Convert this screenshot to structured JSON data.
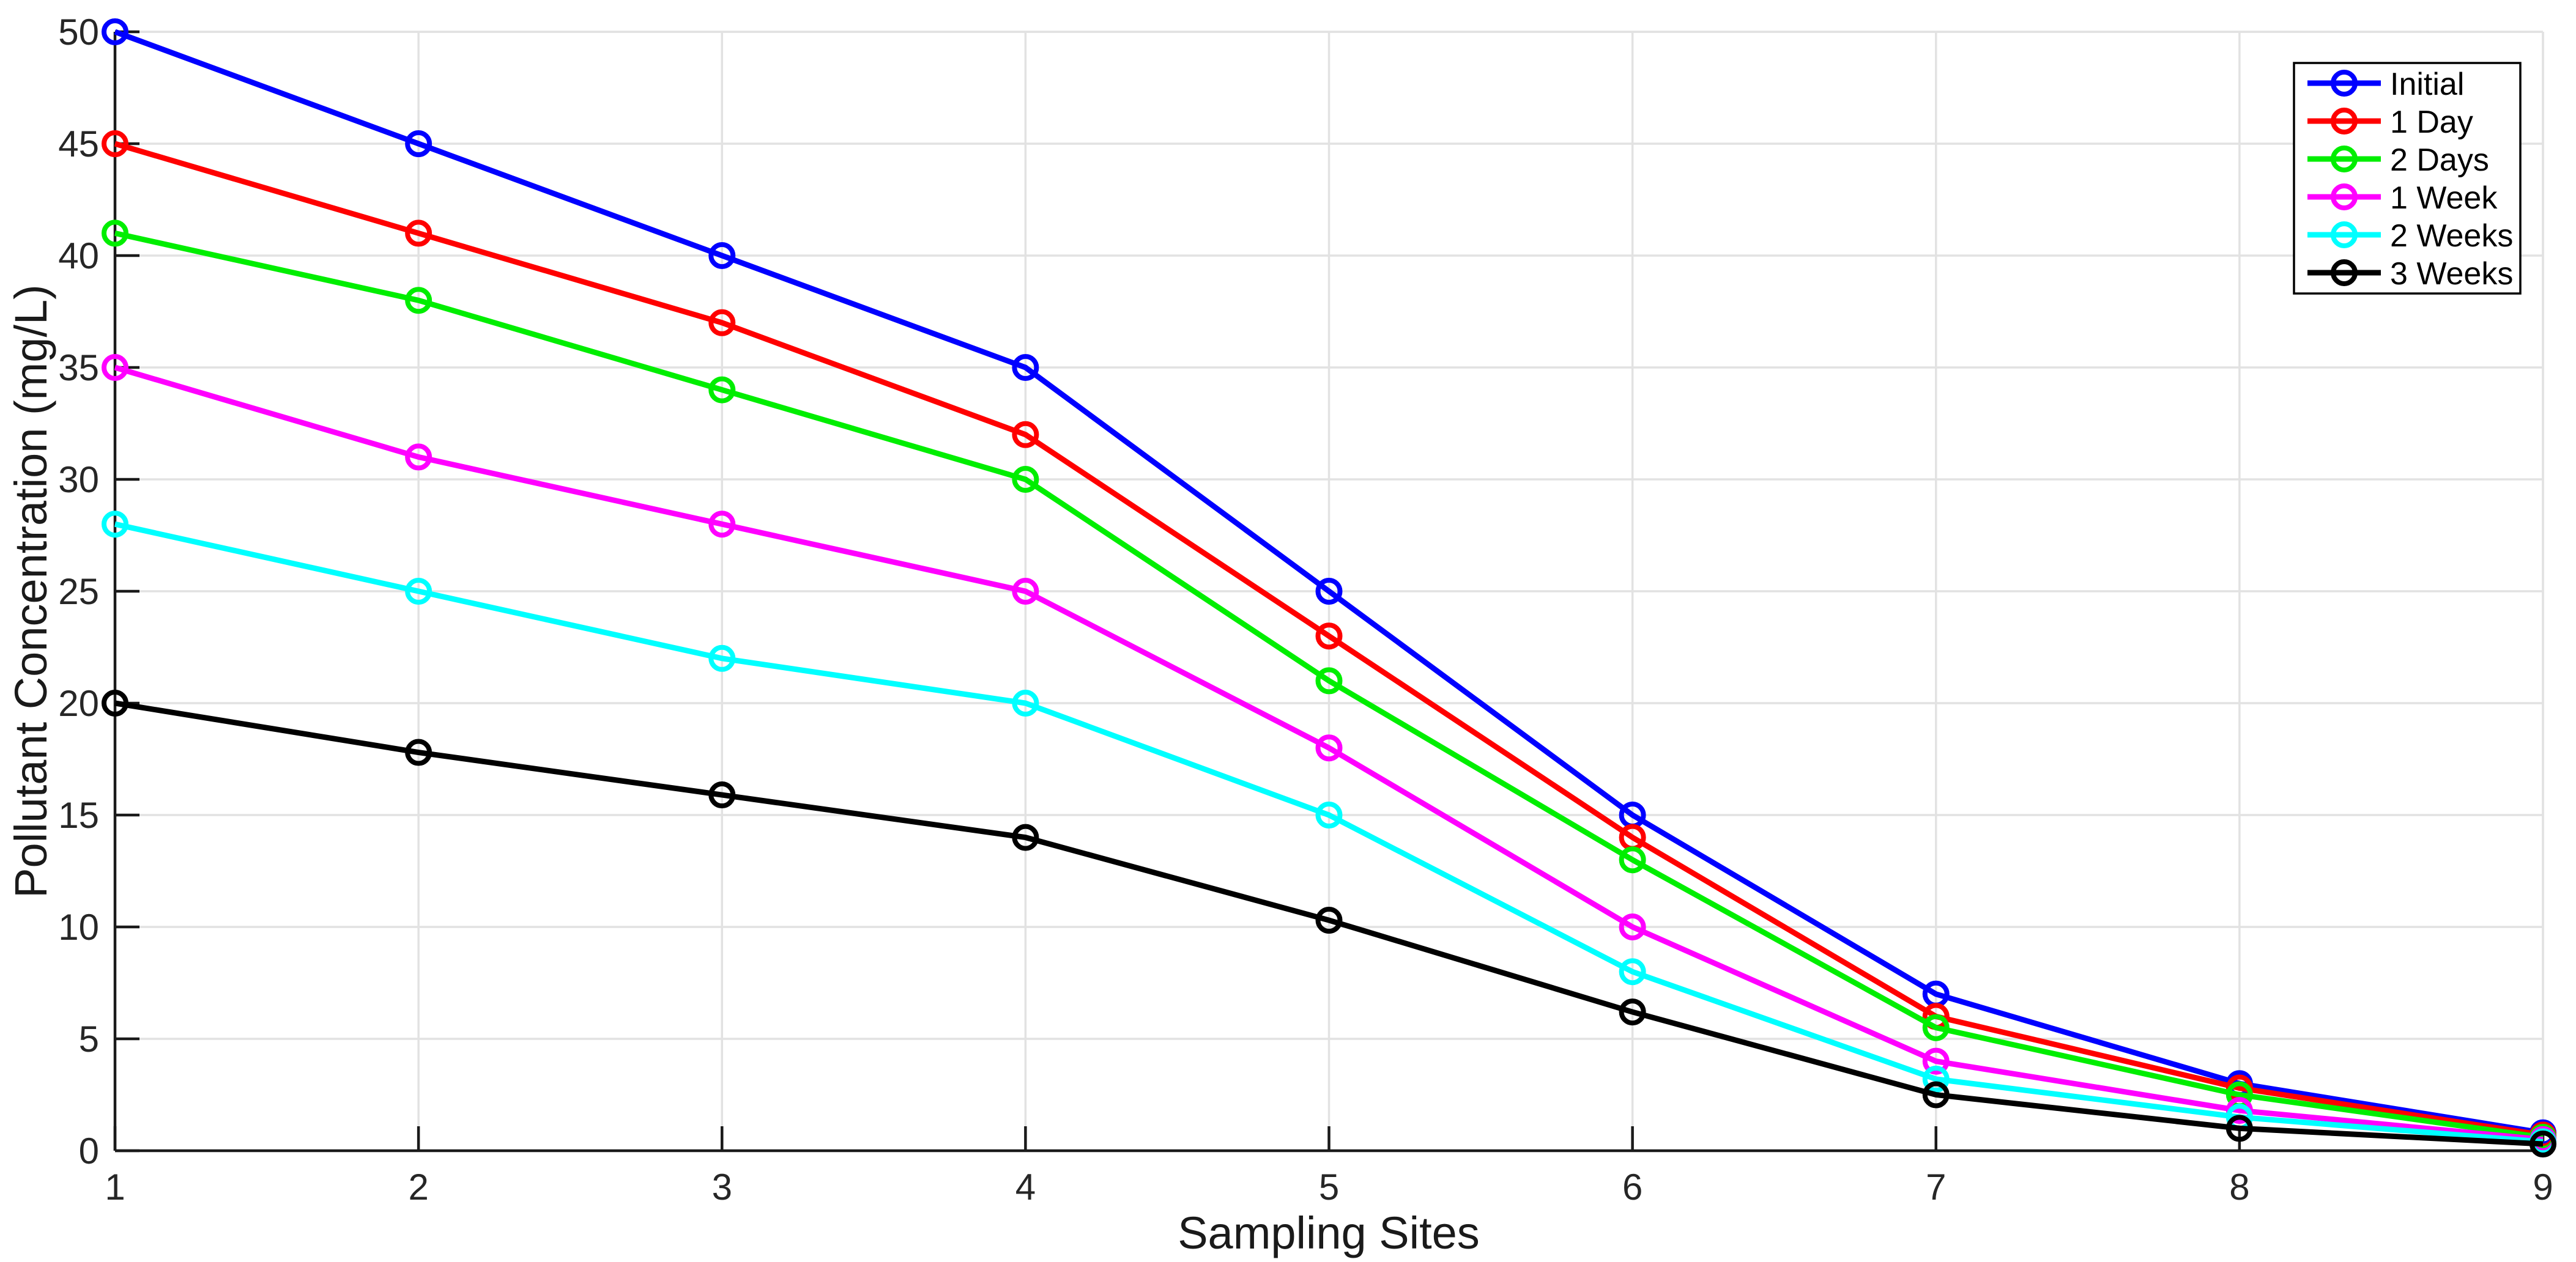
{
  "figure": {
    "background": "#FFFFFF",
    "grid_color": "#E2E2E2",
    "axis_color": "#1A1A1A",
    "tick_text_color": "#262626",
    "label_text_color": "#1A1A1A",
    "legend_border_color": "#000000",
    "legend_background": "#FFFFFF"
  },
  "chart_data": {
    "type": "line",
    "title": "",
    "xlabel": "Sampling Sites",
    "ylabel": "Pollutant Concentration (mg/L)",
    "x": [
      1,
      2,
      3,
      4,
      5,
      6,
      7,
      8,
      9
    ],
    "x_ticks": [
      1,
      2,
      3,
      4,
      5,
      6,
      7,
      8,
      9
    ],
    "y_ticks": [
      0,
      5,
      10,
      15,
      20,
      25,
      30,
      35,
      40,
      45,
      50
    ],
    "xlim": [
      1,
      9
    ],
    "ylim": [
      0,
      50
    ],
    "grid": true,
    "legend_position": "top-right",
    "marker": "open-circle",
    "series": [
      {
        "name": "Initial",
        "color": "#0000FF",
        "values": [
          50,
          45,
          40,
          35,
          25,
          15,
          7,
          3,
          0.8
        ]
      },
      {
        "name": "1 Day",
        "color": "#FF0000",
        "values": [
          45,
          41,
          37,
          32,
          23,
          14,
          6,
          2.8,
          0.7
        ]
      },
      {
        "name": "2 Days",
        "color": "#00EE00",
        "values": [
          41,
          38,
          34,
          30,
          21,
          13,
          5.5,
          2.5,
          0.6
        ]
      },
      {
        "name": "1 Week",
        "color": "#FF00FF",
        "values": [
          35,
          31,
          28,
          25,
          18,
          10,
          4,
          1.8,
          0.5
        ]
      },
      {
        "name": "2 Weeks",
        "color": "#00FFFF",
        "values": [
          28,
          25,
          22,
          20,
          15,
          8,
          3.2,
          1.5,
          0.4
        ]
      },
      {
        "name": "3 Weeks",
        "color": "#000000",
        "values": [
          20,
          17.8,
          15.9,
          14,
          10.3,
          6.2,
          2.5,
          1,
          0.3
        ]
      }
    ]
  }
}
